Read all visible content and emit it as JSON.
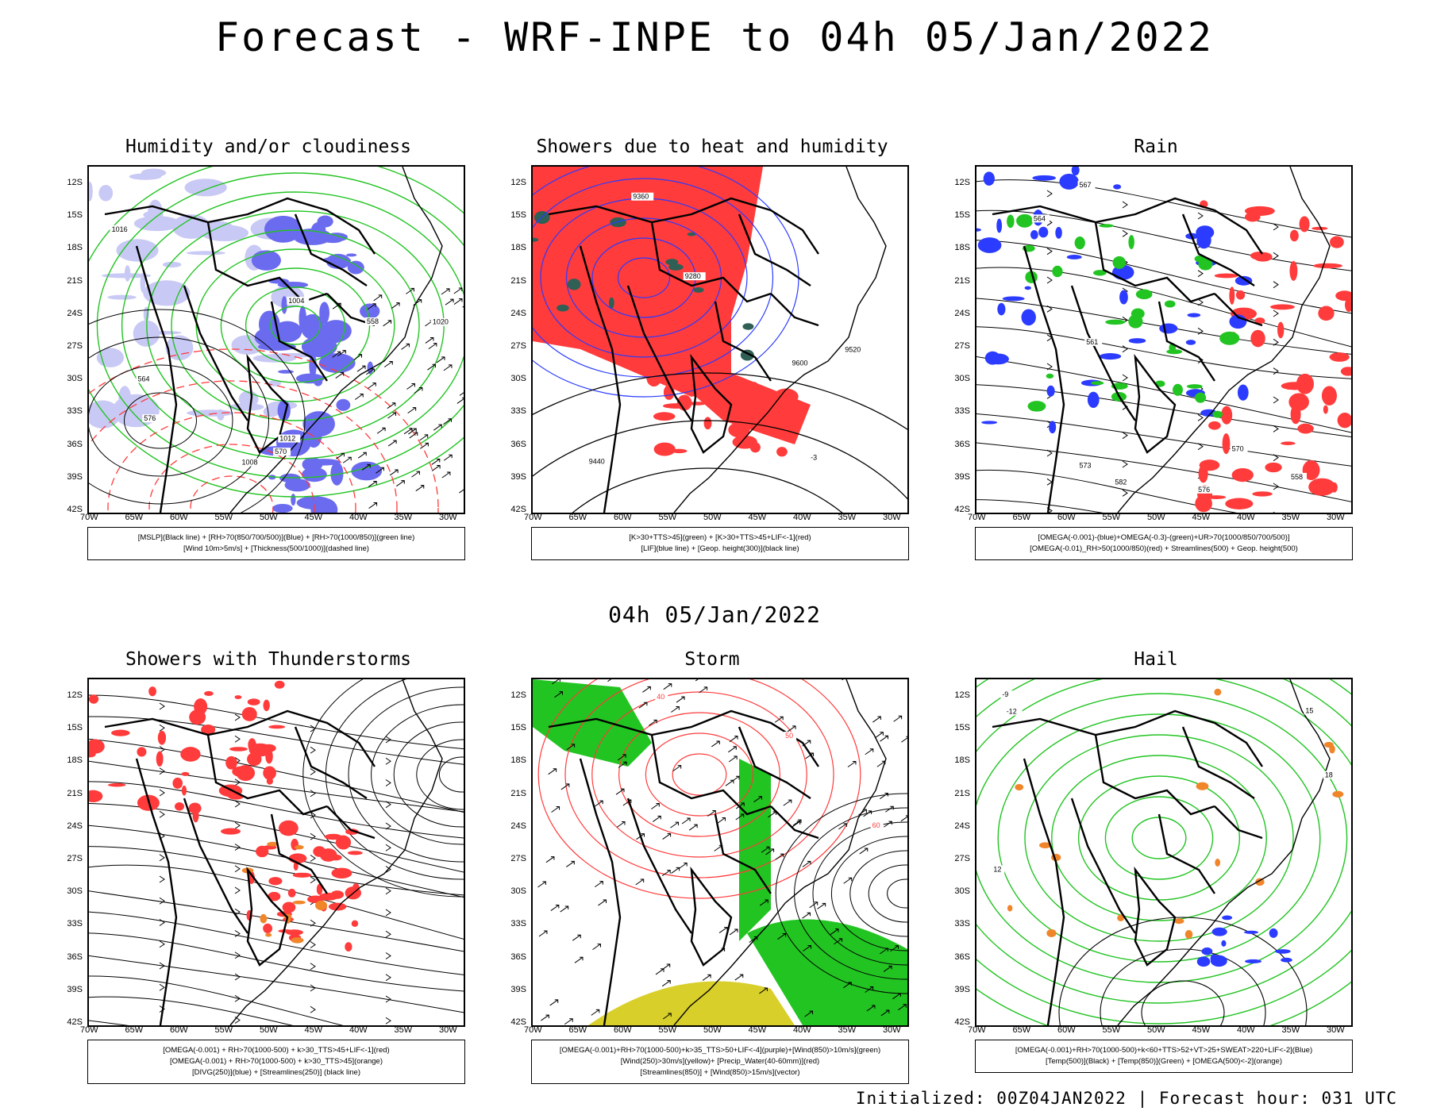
{
  "header": {
    "title": "Forecast - WRF-INPE to 04h 05/Jan/2022"
  },
  "mid_title": "04h 05/Jan/2022",
  "footer": "Initialized: 00Z04JAN2022 | Forecast hour: 031 UTC",
  "axes": {
    "lat_labels": [
      "12S",
      "15S",
      "18S",
      "21S",
      "24S",
      "27S",
      "30S",
      "33S",
      "36S",
      "39S",
      "42S"
    ],
    "lon_labels": [
      "70W",
      "65W",
      "60W",
      "55W",
      "50W",
      "45W",
      "40W",
      "35W",
      "30W"
    ]
  },
  "colors": {
    "red": "#ff3b3b",
    "green": "#22c422",
    "blue": "#2b3bff",
    "purple_shade": "#6b6bef",
    "yellow": "#d9cf2a",
    "orange": "#f0852a",
    "dark_teal": "#2f5f55"
  },
  "panels": [
    {
      "id": "humidity",
      "title": "Humidity and/or cloudiness",
      "legend": [
        "[MSLP](Black line) + [RH>70(850/700/500)](Blue) + [RH>70(1000/850)](green line)",
        "[Wind 10m>5m/s] + [Thickness(500/1000)](dashed line)"
      ],
      "contour_labels": [
        "1008",
        "1012",
        "1004",
        "1016",
        "1020",
        "576",
        "570",
        "564",
        "558"
      ]
    },
    {
      "id": "showers",
      "title": "Showers due to heat and humidity",
      "legend": [
        "[K>30+TTS>45](green) + [K>30+TTS>45+LIF<-1](red)",
        "[LIF](blue line) + [Geop. height(300)](black line)"
      ],
      "contour_labels": [
        "9600",
        "9520",
        "9440",
        "9360",
        "9280",
        "-3"
      ]
    },
    {
      "id": "rain",
      "title": "Rain",
      "legend": [
        "[OMEGA(-0.001)-(blue)+OMEGA(-0.3)-(green)+UR>70(1000/850/700/500)]",
        "[OMEGA(-0.01)_RH>50(1000/850)(red) + Streamlines(500) + Geop. height(500)"
      ],
      "contour_labels": [
        "582",
        "576",
        "573",
        "570",
        "567",
        "564",
        "561",
        "558"
      ]
    },
    {
      "id": "thunder",
      "title": "Showers with Thunderstorms",
      "legend": [
        "[OMEGA(-0.001) + RH>70(1000-500) + k>30_TTS>45+LIF<-1](red)",
        "[OMEGA(-0.001) + RH>70(1000-500) + k>30_TTS>45](orange)",
        "[DIVG(250)](blue) + [Streamlines(250)] (black line)"
      ]
    },
    {
      "id": "storm",
      "title": "Storm",
      "legend": [
        "[OMEGA(-0.001)+RH>70(1000-500)+k>35_TTS>50+LIF<-4](purple)+[Wind(850)>10m/s](green)",
        "[Wind(250)>30m/s](yellow)+ [Precip_Water(40-60mm)](red)",
        "[Streamlines(850)] + [Wind(850)>15m/s](vector)"
      ],
      "contour_labels": [
        "40",
        "50",
        "60"
      ]
    },
    {
      "id": "hail",
      "title": "Hail",
      "legend": [
        "[OMEGA(-0.001)+RH>70(1000-500)+k<60+TTS>52+VT>25+SWEAT>220+LIF<-2](Blue)",
        "[Temp(500)](Black) + [Temp(850)](Green) + [OMEGA(500)<-2](orange)"
      ],
      "contour_labels": [
        "-12",
        "-9",
        "12",
        "15",
        "18"
      ]
    }
  ]
}
